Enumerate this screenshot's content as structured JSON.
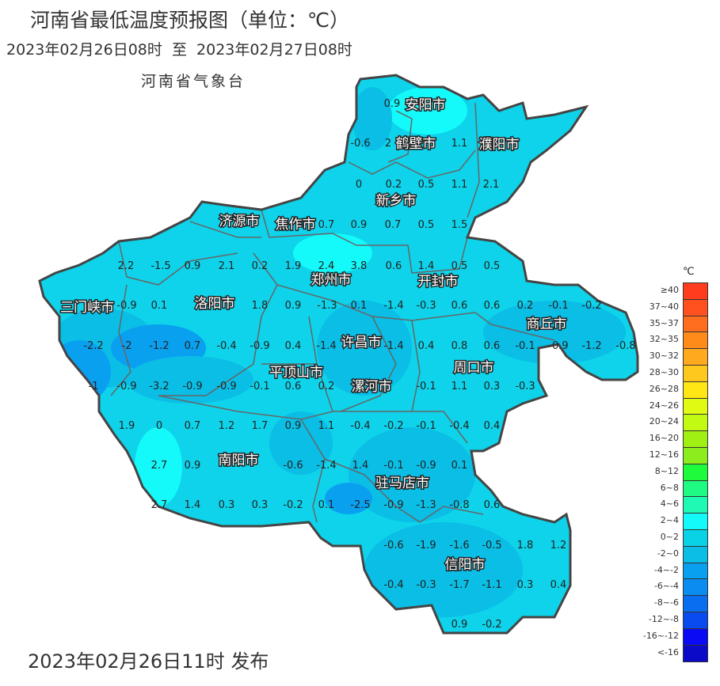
{
  "header": {
    "title": "河南省最低温度预报图（单位：℃）",
    "period": "2023年02月26日08时  至  2023年02月27日08时",
    "agency": "河南省气象台"
  },
  "footer": {
    "issued": "2023年02月26日11时 发布"
  },
  "map": {
    "base_color": "#0ed3ea",
    "border_color": "#444444",
    "cities": [
      "安阳市",
      "鹤壁市",
      "濮阳市",
      "新乡市",
      "济源市",
      "焦作市",
      "郑州市",
      "开封市",
      "三门峡市",
      "洛阳市",
      "商丘市",
      "许昌市",
      "平顶山市",
      "漯河市",
      "周口市",
      "南阳市",
      "驻马店市",
      "信阳市"
    ],
    "values": [
      "0.9",
      "-0.6",
      "2",
      "1.1",
      "0",
      "0.2",
      "0.5",
      "1.1",
      "2.1",
      "0.7",
      "0.9",
      "0.7",
      "0.5",
      "1.5",
      "2.2",
      "-1.5",
      "0.9",
      "2.1",
      "0.2",
      "1.9",
      "2.4",
      "3.8",
      "0.6",
      "1.4",
      "0.5",
      "0.5",
      "-0.9",
      "0.1",
      "1.8",
      "0.9",
      "-1.3",
      "0.1",
      "-1.4",
      "-0.3",
      "0.6",
      "0.6",
      "0.2",
      "-0.1",
      "-0.2",
      "-2.2",
      "-2",
      "-1.2",
      "0.7",
      "-0.4",
      "-0.9",
      "0.4",
      "-1.4",
      "-1.4",
      "0.4",
      "0.8",
      "0.6",
      "-0.1",
      "-0.9",
      "-1.2",
      "-0.8",
      "-1",
      "-0.9",
      "-3.2",
      "-0.9",
      "-0.9",
      "-0.1",
      "0.6",
      "0.2",
      "-0.1",
      "1.1",
      "0.3",
      "-0.3",
      "1.9",
      "0",
      "0.7",
      "1.2",
      "1.7",
      "0.9",
      "1.1",
      "-0.4",
      "-0.2",
      "-0.1",
      "-0.4",
      "0.4",
      "2.7",
      "0.9",
      "-0.6",
      "-1.4",
      "1.4",
      "-0.1",
      "-0.9",
      "0.1",
      "2.7",
      "1.4",
      "0.3",
      "0.3",
      "-0.2",
      "0.1",
      "-2.5",
      "-0.9",
      "-1.3",
      "-0.8",
      "0.6",
      "-0.6",
      "-1.9",
      "-1.6",
      "-0.5",
      "1.8",
      "1.2",
      "-0.4",
      "-0.3",
      "-1.7",
      "-1.1",
      "0.3",
      "0.4",
      "0.9",
      "-0.2"
    ]
  },
  "legend": {
    "unit": "℃",
    "items": [
      {
        "label": "≥40",
        "color": "#ff3c1e"
      },
      {
        "label": "37~40",
        "color": "#ff5020"
      },
      {
        "label": "35~37",
        "color": "#ff6e1e"
      },
      {
        "label": "32~35",
        "color": "#ff8c1a"
      },
      {
        "label": "30~32",
        "color": "#ffaa1e"
      },
      {
        "label": "28~30",
        "color": "#ffc81e"
      },
      {
        "label": "26~28",
        "color": "#ffe614"
      },
      {
        "label": "24~26",
        "color": "#e1fa14"
      },
      {
        "label": "20~24",
        "color": "#c3fa14"
      },
      {
        "label": "16~20",
        "color": "#a0f014"
      },
      {
        "label": "12~16",
        "color": "#8ced1e"
      },
      {
        "label": "8~12",
        "color": "#1efa3c"
      },
      {
        "label": "6~8",
        "color": "#1efa82"
      },
      {
        "label": "4~6",
        "color": "#1efab4"
      },
      {
        "label": "2~4",
        "color": "#14fafa"
      },
      {
        "label": "0~2",
        "color": "#0ad2e6"
      },
      {
        "label": "-2~0",
        "color": "#0abee6"
      },
      {
        "label": "-4~-2",
        "color": "#0aa0f0"
      },
      {
        "label": "-6~-4",
        "color": "#0a8cf0"
      },
      {
        "label": "-8~-6",
        "color": "#0a6ef0"
      },
      {
        "label": "-12~-8",
        "color": "#0a4bf0"
      },
      {
        "label": "-16~-12",
        "color": "#0a0af5"
      },
      {
        "label": "<-16",
        "color": "#0a0ac8"
      }
    ]
  }
}
